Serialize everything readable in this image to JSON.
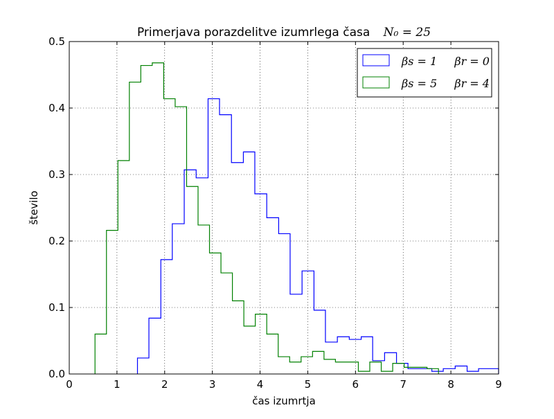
{
  "chart_data": {
    "type": "line",
    "style": "step-histogram",
    "title": "Primerjava porazdelitve izumrlega časa",
    "title_math": "N₀ = 25",
    "xlabel": "čas izumrtja",
    "ylabel": "število",
    "xlim": [
      0,
      9
    ],
    "ylim": [
      0,
      0.5
    ],
    "xticks": [
      "0",
      "1",
      "2",
      "3",
      "4",
      "5",
      "6",
      "7",
      "8",
      "9"
    ],
    "yticks": [
      "0.0",
      "0.1",
      "0.2",
      "0.3",
      "0.4",
      "0.5"
    ],
    "grid": true,
    "legend_position": "top-right",
    "series": [
      {
        "name": "βs = 1   βr = 0",
        "color": "#0000ff",
        "edges": [
          1.43,
          1.67,
          1.92,
          2.16,
          2.41,
          2.66,
          2.91,
          3.15,
          3.4,
          3.65,
          3.89,
          4.14,
          4.39,
          4.63,
          4.88,
          5.13,
          5.37,
          5.62,
          5.87,
          6.12,
          6.36,
          6.61,
          6.86,
          7.1,
          7.35,
          7.6,
          7.84,
          8.09,
          8.34,
          8.58,
          9.0
        ],
        "values": [
          0.024,
          0.084,
          0.172,
          0.226,
          0.307,
          0.295,
          0.414,
          0.39,
          0.318,
          0.334,
          0.271,
          0.235,
          0.211,
          0.12,
          0.155,
          0.096,
          0.048,
          0.056,
          0.052,
          0.056,
          0.02,
          0.032,
          0.016,
          0.008,
          0.008,
          0.004,
          0.008,
          0.012,
          0.004,
          0.008
        ]
      },
      {
        "name": "βs = 5   βr = 4",
        "color": "#008000",
        "edges": [
          0.54,
          0.78,
          1.02,
          1.26,
          1.5,
          1.74,
          1.98,
          2.22,
          2.46,
          2.7,
          2.94,
          3.18,
          3.42,
          3.66,
          3.9,
          4.14,
          4.38,
          4.62,
          4.86,
          5.1,
          5.34,
          5.58,
          5.82,
          6.06,
          6.3,
          6.54,
          6.78,
          7.02,
          7.26,
          7.5,
          7.74
        ],
        "values": [
          0.06,
          0.216,
          0.321,
          0.439,
          0.464,
          0.468,
          0.414,
          0.402,
          0.282,
          0.224,
          0.182,
          0.152,
          0.11,
          0.072,
          0.09,
          0.06,
          0.026,
          0.018,
          0.026,
          0.034,
          0.022,
          0.018,
          0.018,
          0.004,
          0.018,
          0.004,
          0.016,
          0.01,
          0.01,
          0.008
        ]
      }
    ],
    "legend_labels": [
      {
        "beta_s": "βs = 1",
        "beta_r": "βr = 0"
      },
      {
        "beta_s": "βs = 5",
        "beta_r": "βr = 4"
      }
    ]
  }
}
